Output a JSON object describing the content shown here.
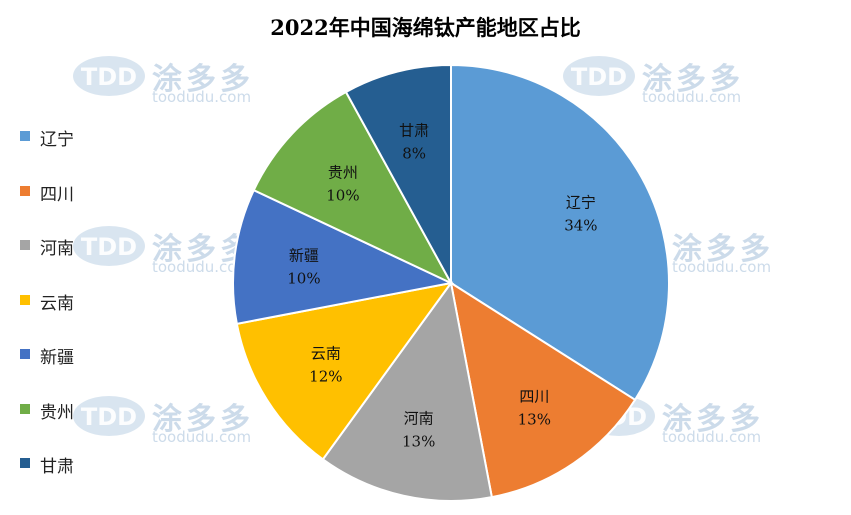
{
  "chart_data": {
    "type": "pie",
    "title": "2022年中国海绵钛产能地区占比",
    "categories": [
      "辽宁",
      "四川",
      "河南",
      "云南",
      "新疆",
      "贵州",
      "甘肃"
    ],
    "values": [
      34,
      13,
      13,
      12,
      10,
      10,
      8
    ],
    "value_labels": [
      "34%",
      "13%",
      "13%",
      "12%",
      "10%",
      "10%",
      "8%"
    ],
    "colors": [
      "#5b9bd5",
      "#ed7d31",
      "#a5a5a5",
      "#ffc000",
      "#4472c4",
      "#70ad47",
      "#255e91"
    ],
    "legend_position": "left",
    "start": "12 o'clock, clockwise"
  },
  "watermark": {
    "logo_text": "TDD",
    "brand_cn": "涂多多",
    "url": "toodudu.com"
  }
}
